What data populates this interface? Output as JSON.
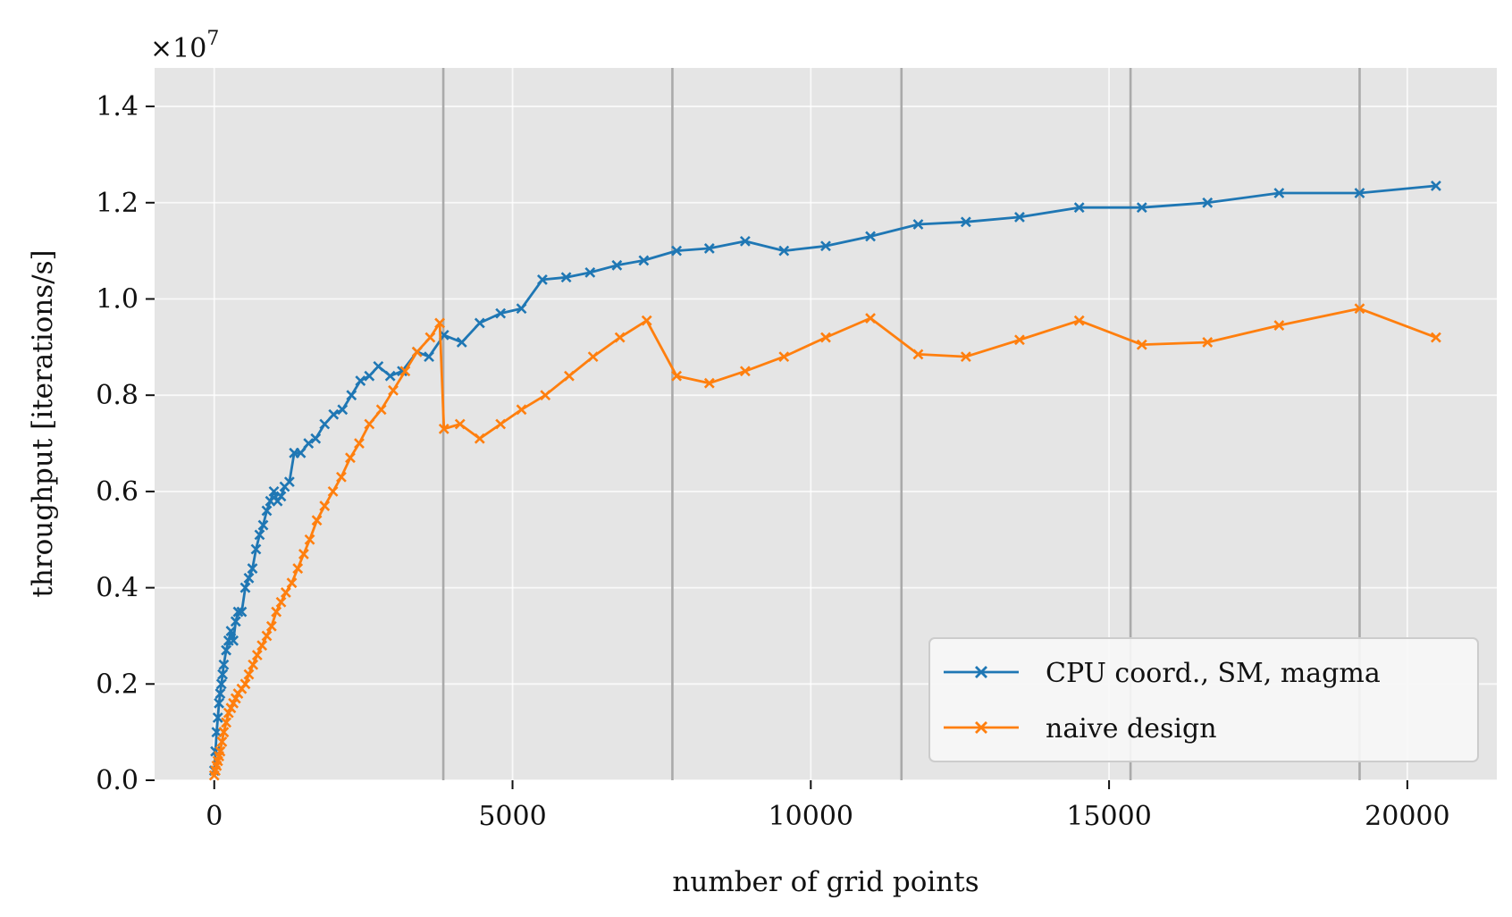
{
  "chart_data": {
    "type": "line",
    "xlabel": "number of grid points",
    "ylabel": "throughput [iterations/s]",
    "y_multiplier_label": "×10",
    "y_multiplier_exponent": "7",
    "xlim": [
      -1000,
      21500
    ],
    "ylim": [
      0,
      14.8
    ],
    "y_scale": 10000000.0,
    "x_ticks": [
      0,
      5000,
      10000,
      15000,
      20000
    ],
    "x_tick_labels": [
      "0",
      "5000",
      "10000",
      "15000",
      "20000"
    ],
    "y_ticks": [
      0,
      2,
      4,
      6,
      8,
      10,
      12,
      14
    ],
    "y_tick_labels": [
      "0.0",
      "0.2",
      "0.4",
      "0.6",
      "0.8",
      "1.0",
      "1.2",
      "1.4"
    ],
    "grid": true,
    "background": "#e5e5e5",
    "vertical_lines_x": [
      3840,
      7680,
      11520,
      15360,
      19200
    ],
    "legend_position": "lower-right",
    "series": [
      {
        "name": "CPU coord., SM, magma",
        "color": "#1f77b4",
        "marker": "x",
        "points": [
          [
            0,
            0.2
          ],
          [
            20,
            0.6
          ],
          [
            40,
            1.0
          ],
          [
            60,
            1.3
          ],
          [
            80,
            1.6
          ],
          [
            100,
            1.8
          ],
          [
            120,
            2.0
          ],
          [
            140,
            2.2
          ],
          [
            160,
            2.4
          ],
          [
            200,
            2.7
          ],
          [
            240,
            2.9
          ],
          [
            280,
            3.1
          ],
          [
            320,
            2.9
          ],
          [
            360,
            3.3
          ],
          [
            400,
            3.5
          ],
          [
            460,
            3.5
          ],
          [
            520,
            4.0
          ],
          [
            580,
            4.2
          ],
          [
            640,
            4.4
          ],
          [
            700,
            4.8
          ],
          [
            760,
            5.1
          ],
          [
            820,
            5.3
          ],
          [
            880,
            5.6
          ],
          [
            940,
            5.8
          ],
          [
            1000,
            6.0
          ],
          [
            1060,
            5.8
          ],
          [
            1120,
            5.9
          ],
          [
            1180,
            6.1
          ],
          [
            1260,
            6.2
          ],
          [
            1340,
            6.8
          ],
          [
            1450,
            6.8
          ],
          [
            1580,
            7.0
          ],
          [
            1700,
            7.1
          ],
          [
            1850,
            7.4
          ],
          [
            2000,
            7.6
          ],
          [
            2150,
            7.7
          ],
          [
            2300,
            8.0
          ],
          [
            2450,
            8.3
          ],
          [
            2600,
            8.4
          ],
          [
            2750,
            8.6
          ],
          [
            2950,
            8.4
          ],
          [
            3150,
            8.5
          ],
          [
            3400,
            8.9
          ],
          [
            3600,
            8.8
          ],
          [
            3850,
            9.25
          ],
          [
            4150,
            9.1
          ],
          [
            4450,
            9.5
          ],
          [
            4800,
            9.7
          ],
          [
            5150,
            9.8
          ],
          [
            5500,
            10.4
          ],
          [
            5900,
            10.45
          ],
          [
            6300,
            10.55
          ],
          [
            6750,
            10.7
          ],
          [
            7200,
            10.8
          ],
          [
            7750,
            11.0
          ],
          [
            8300,
            11.05
          ],
          [
            8900,
            11.2
          ],
          [
            9550,
            11.0
          ],
          [
            10250,
            11.1
          ],
          [
            11000,
            11.3
          ],
          [
            11800,
            11.55
          ],
          [
            12600,
            11.6
          ],
          [
            13500,
            11.7
          ],
          [
            14500,
            11.9
          ],
          [
            15550,
            11.9
          ],
          [
            16650,
            12.0
          ],
          [
            17850,
            12.2
          ],
          [
            19200,
            12.2
          ],
          [
            20480,
            12.35
          ]
        ]
      },
      {
        "name": "naive design",
        "color": "#ff7f0e",
        "marker": "x",
        "points": [
          [
            0,
            0.1
          ],
          [
            20,
            0.2
          ],
          [
            40,
            0.3
          ],
          [
            60,
            0.4
          ],
          [
            80,
            0.5
          ],
          [
            100,
            0.6
          ],
          [
            130,
            0.8
          ],
          [
            160,
            1.0
          ],
          [
            200,
            1.2
          ],
          [
            240,
            1.4
          ],
          [
            280,
            1.5
          ],
          [
            320,
            1.6
          ],
          [
            360,
            1.7
          ],
          [
            400,
            1.8
          ],
          [
            460,
            1.9
          ],
          [
            520,
            2.0
          ],
          [
            580,
            2.2
          ],
          [
            650,
            2.4
          ],
          [
            720,
            2.6
          ],
          [
            800,
            2.8
          ],
          [
            880,
            3.0
          ],
          [
            960,
            3.2
          ],
          [
            1040,
            3.5
          ],
          [
            1120,
            3.7
          ],
          [
            1200,
            3.9
          ],
          [
            1300,
            4.1
          ],
          [
            1400,
            4.4
          ],
          [
            1500,
            4.7
          ],
          [
            1600,
            5.0
          ],
          [
            1720,
            5.4
          ],
          [
            1850,
            5.7
          ],
          [
            1990,
            6.0
          ],
          [
            2130,
            6.3
          ],
          [
            2280,
            6.7
          ],
          [
            2430,
            7.0
          ],
          [
            2600,
            7.4
          ],
          [
            2800,
            7.7
          ],
          [
            3000,
            8.1
          ],
          [
            3200,
            8.5
          ],
          [
            3400,
            8.9
          ],
          [
            3620,
            9.2
          ],
          [
            3780,
            9.5
          ],
          [
            3850,
            7.3
          ],
          [
            4120,
            7.4
          ],
          [
            4450,
            7.1
          ],
          [
            4800,
            7.4
          ],
          [
            5150,
            7.7
          ],
          [
            5550,
            8.0
          ],
          [
            5950,
            8.4
          ],
          [
            6350,
            8.8
          ],
          [
            6800,
            9.2
          ],
          [
            7250,
            9.55
          ],
          [
            7750,
            8.4
          ],
          [
            8300,
            8.25
          ],
          [
            8900,
            8.5
          ],
          [
            9550,
            8.8
          ],
          [
            10250,
            9.2
          ],
          [
            11000,
            9.6
          ],
          [
            11800,
            8.85
          ],
          [
            12600,
            8.8
          ],
          [
            13500,
            9.15
          ],
          [
            14500,
            9.55
          ],
          [
            15550,
            9.05
          ],
          [
            16650,
            9.1
          ],
          [
            17850,
            9.45
          ],
          [
            19200,
            9.8
          ],
          [
            20480,
            9.2
          ]
        ]
      }
    ]
  }
}
